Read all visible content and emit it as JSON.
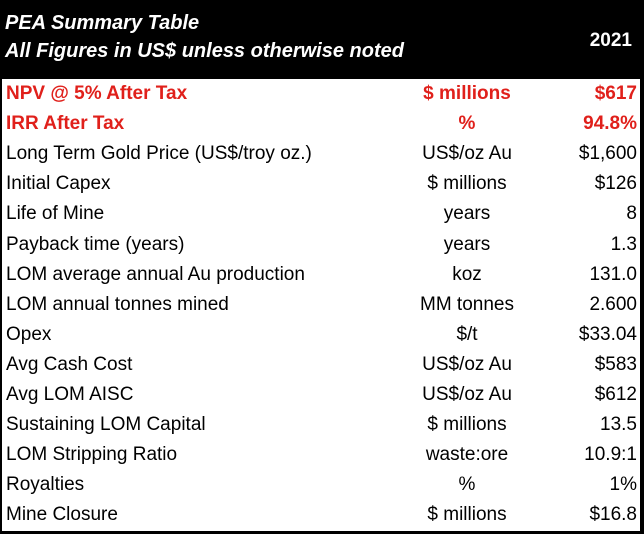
{
  "header": {
    "title_line1": "PEA Summary Table",
    "title_line2": "All Figures in US$ unless otherwise noted",
    "year": "2021"
  },
  "colors": {
    "header_bg": "#000000",
    "header_text": "#ffffff",
    "highlight_text": "#e0201b",
    "body_text": "#000000"
  },
  "rows": [
    {
      "label": "NPV @ 5% After Tax",
      "unit": "$ millions",
      "value": "$617",
      "highlight": true
    },
    {
      "label": "IRR After Tax",
      "unit": "%",
      "value": "94.8%",
      "highlight": true
    },
    {
      "label": "Long Term Gold Price (US$/troy oz.)",
      "unit": "US$/oz Au",
      "value": "$1,600",
      "highlight": false
    },
    {
      "label": "Initial Capex",
      "unit": "$ millions",
      "value": "$126",
      "highlight": false
    },
    {
      "label": "Life of Mine",
      "unit": "years",
      "value": "8",
      "highlight": false
    },
    {
      "label": "Payback time (years)",
      "unit": "years",
      "value": "1.3",
      "highlight": false
    },
    {
      "label": "LOM average annual Au production",
      "unit": "koz",
      "value": "131.0",
      "highlight": false
    },
    {
      "label": "LOM annual tonnes mined",
      "unit": "MM tonnes",
      "value": "2.600",
      "highlight": false
    },
    {
      "label": "Opex",
      "unit": "$/t",
      "value": "$33.04",
      "highlight": false
    },
    {
      "label": "Avg Cash Cost",
      "unit": "US$/oz Au",
      "value": "$583",
      "highlight": false
    },
    {
      "label": "Avg LOM AISC",
      "unit": "US$/oz Au",
      "value": "$612",
      "highlight": false
    },
    {
      "label": "Sustaining LOM Capital",
      "unit": "$ millions",
      "value": "13.5",
      "highlight": false
    },
    {
      "label": "LOM Stripping Ratio",
      "unit": "waste:ore",
      "value": "10.9:1",
      "highlight": false
    },
    {
      "label": "Royalties",
      "unit": "%",
      "value": "1%",
      "highlight": false
    },
    {
      "label": "Mine Closure",
      "unit": "$ millions",
      "value": "$16.8",
      "highlight": false
    }
  ]
}
